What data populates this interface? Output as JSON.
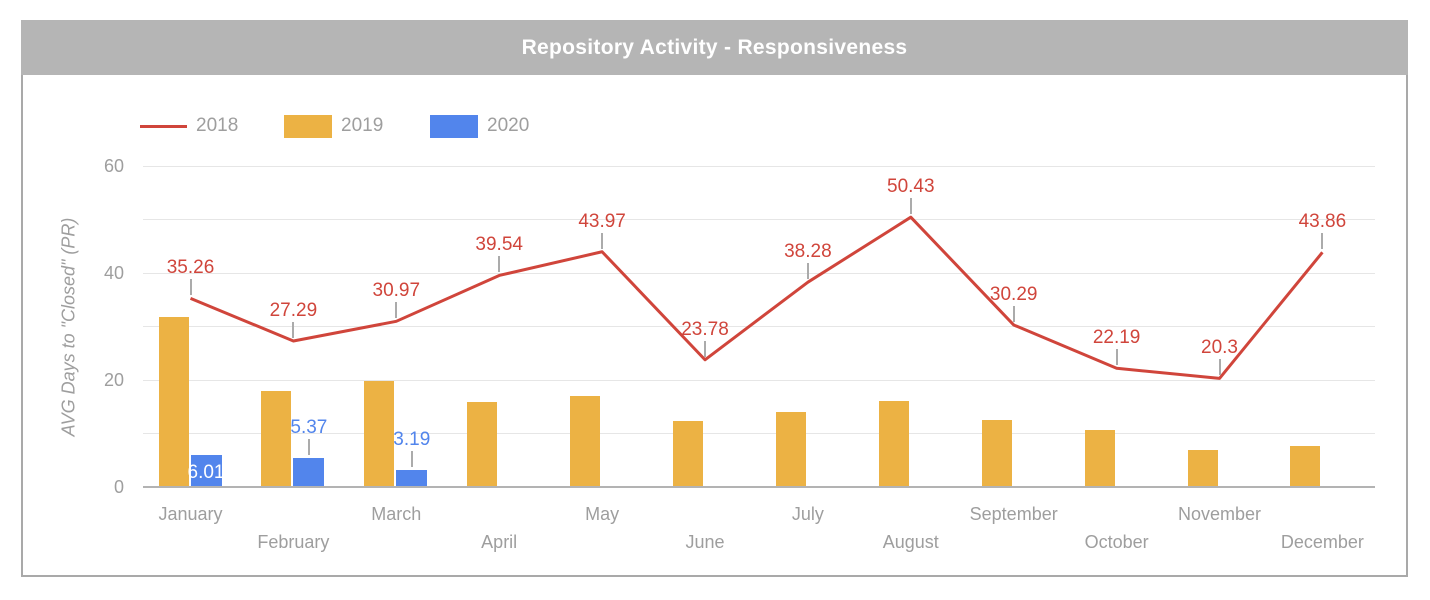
{
  "title": "Repository Activity - Responsiveness",
  "legend": {
    "items": [
      {
        "label": "2018",
        "type": "line",
        "color": "#d0453b"
      },
      {
        "label": "2019",
        "type": "bar",
        "color": "#ecb244"
      },
      {
        "label": "2020",
        "type": "bar",
        "color": "#5285ec"
      }
    ]
  },
  "y_axis": {
    "title": "AVG Days to \"Closed\" (PR)",
    "ticks": [
      0,
      20,
      40,
      60
    ]
  },
  "chart_data": {
    "type": "combo",
    "title": "Repository Activity - Responsiveness",
    "categories": [
      "January",
      "February",
      "March",
      "April",
      "May",
      "June",
      "July",
      "August",
      "September",
      "October",
      "November",
      "December"
    ],
    "series": [
      {
        "name": "2018",
        "type": "line",
        "color": "#d0453b",
        "data_labels": true,
        "values": [
          35.26,
          27.29,
          30.97,
          39.54,
          43.97,
          23.78,
          38.28,
          50.43,
          30.29,
          22.19,
          20.3,
          43.86
        ]
      },
      {
        "name": "2019",
        "type": "bar",
        "color": "#ecb244",
        "data_labels": false,
        "values": [
          31.7,
          17.9,
          19.9,
          15.8,
          17,
          12.3,
          14,
          16,
          12.5,
          10.6,
          6.9,
          7.6
        ]
      },
      {
        "name": "2020",
        "type": "bar",
        "color": "#5285ec",
        "data_labels": true,
        "values": [
          6.01,
          5.37,
          3.19,
          null,
          null,
          null,
          null,
          null,
          null,
          null,
          null,
          null
        ]
      }
    ],
    "xlabel": "",
    "ylabel": "AVG Days to \"Closed\" (PR)",
    "ylim": [
      0,
      60
    ],
    "gridlines": {
      "minor_step": 10,
      "labeled_step": 20,
      "visible": true
    },
    "legend_position": "top-left"
  },
  "colors": {
    "background": "#ffffff",
    "title_bar_bg": "#b5b5b5",
    "title_text": "#ffffff",
    "axis_text": "#9e9e9e",
    "gridline": "#e6e6e6",
    "baseline": "#b3b3b3",
    "leader_line": "#ababab",
    "annotation_on_bar_text": "#ffffff",
    "series_2018": "#d0453b",
    "series_2019": "#ecb244",
    "series_2020": "#5285ec",
    "border": "#a9a9a9"
  }
}
